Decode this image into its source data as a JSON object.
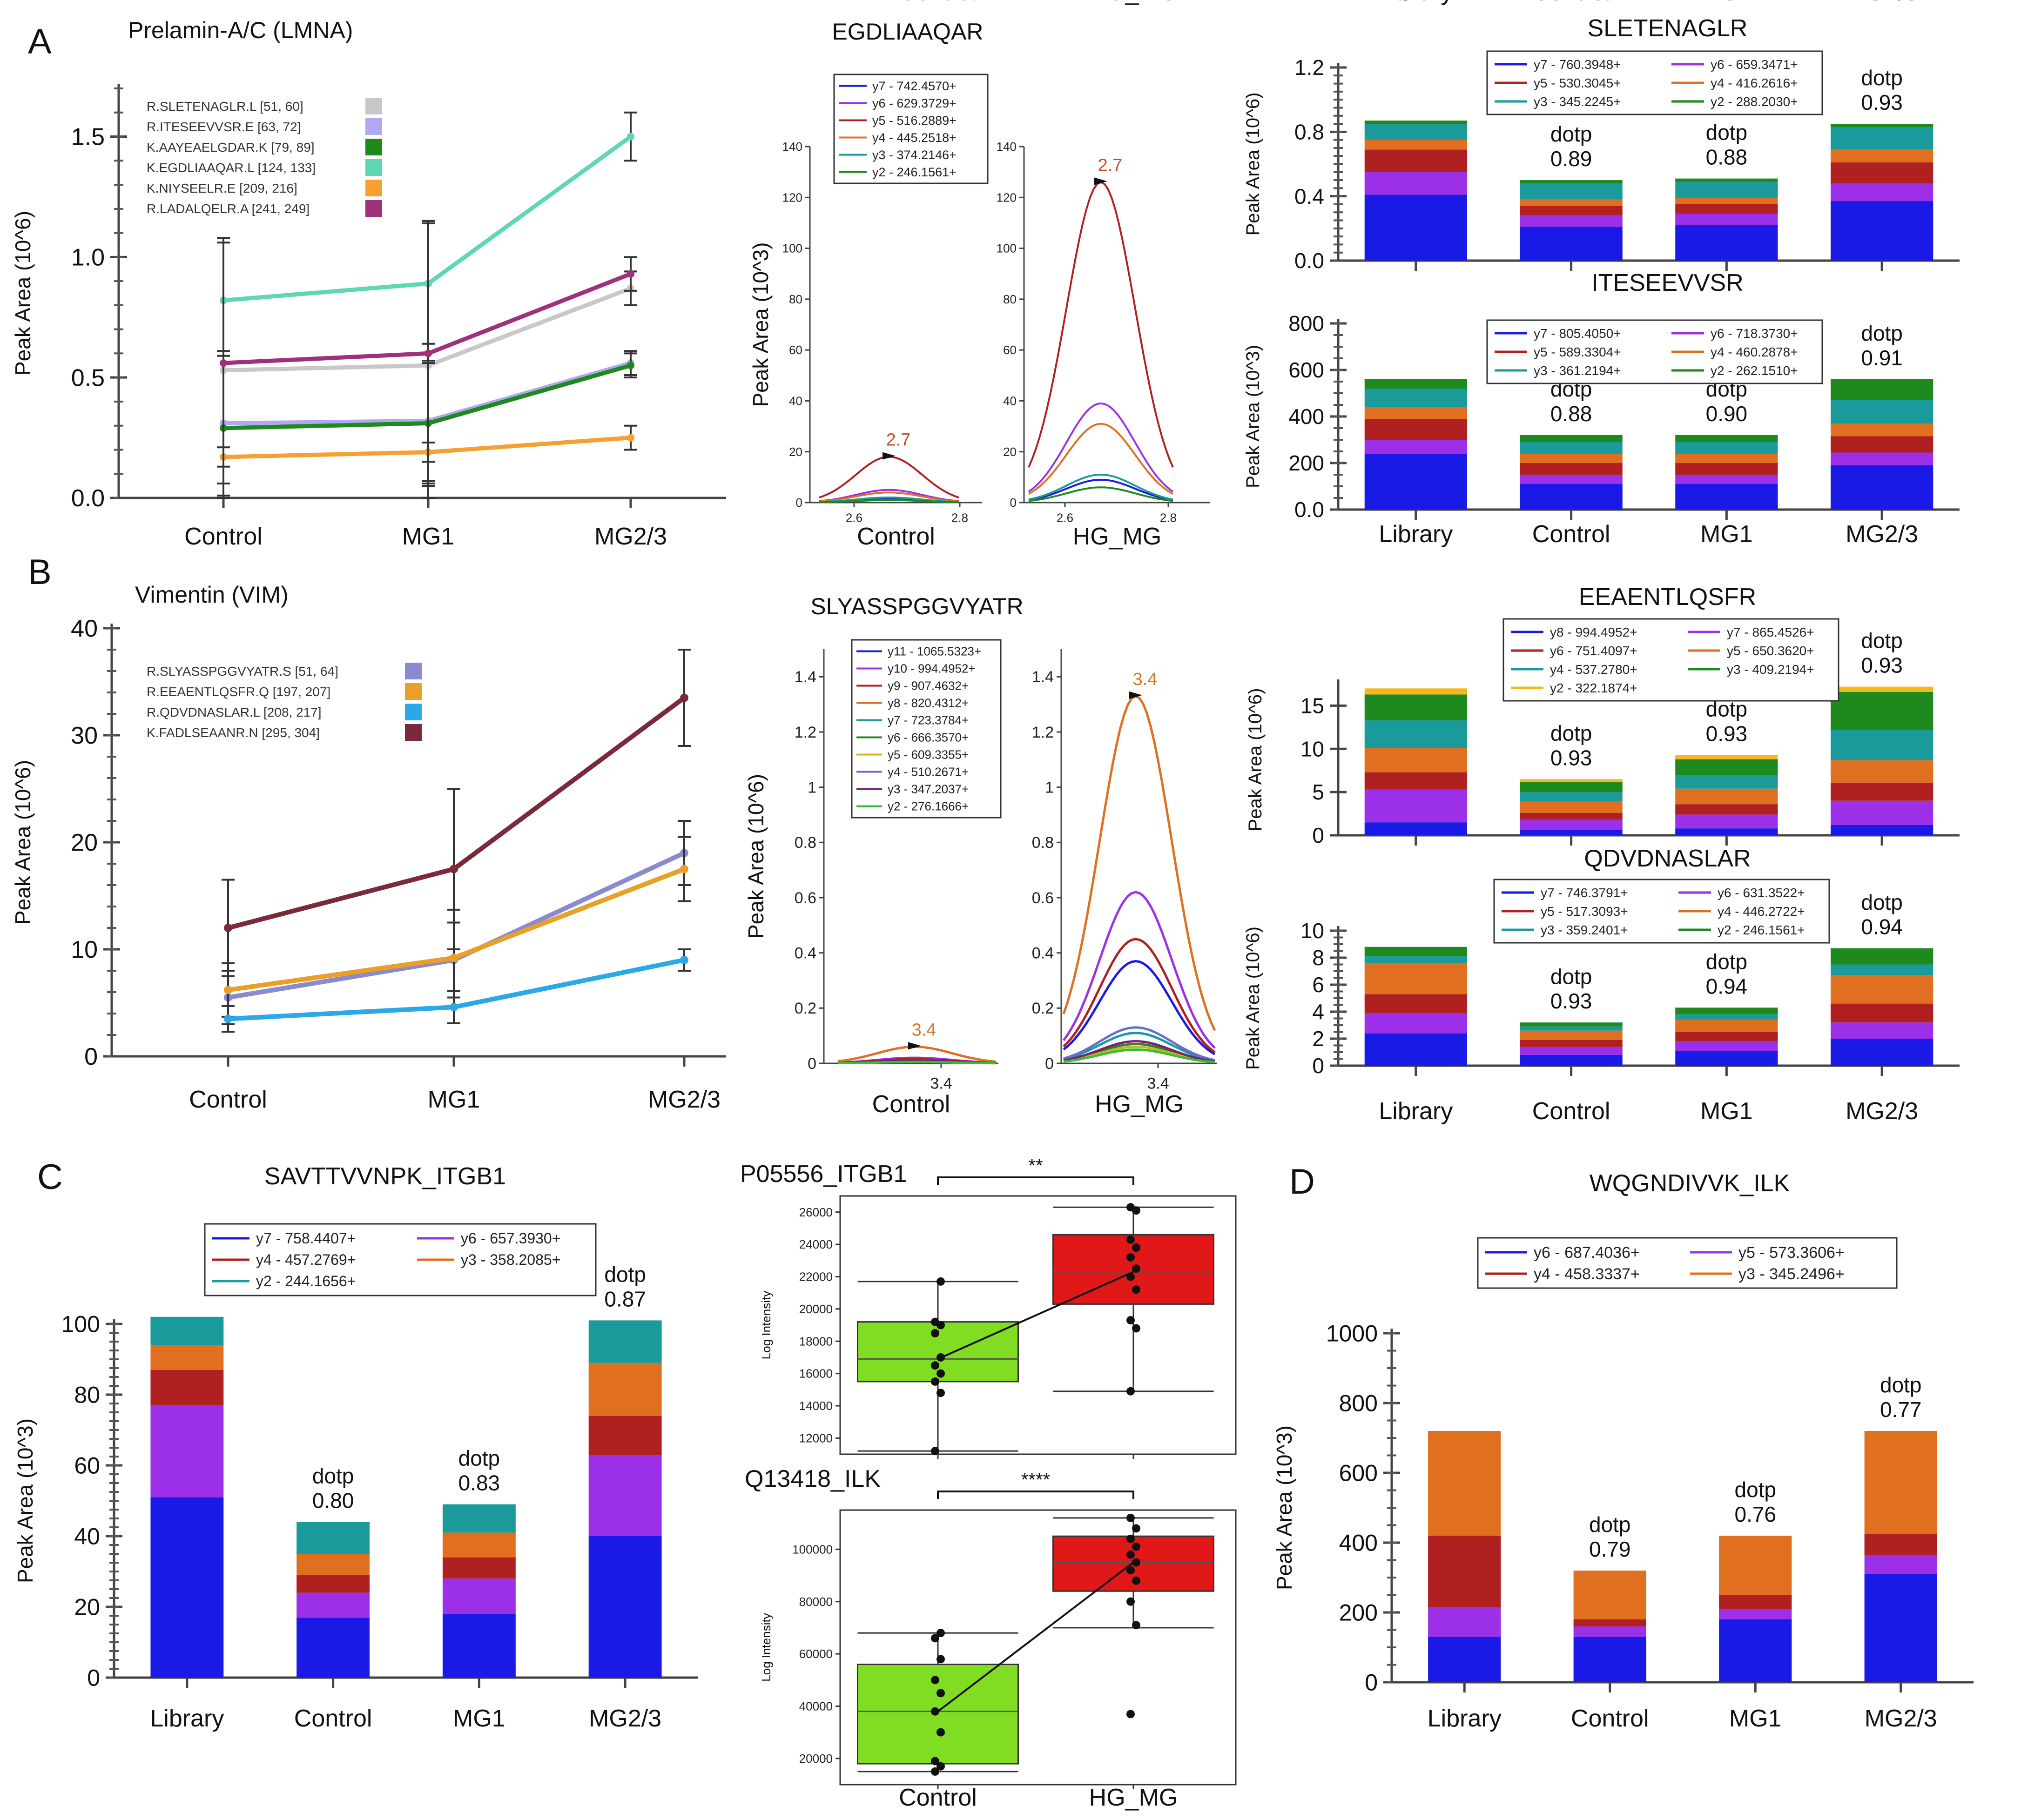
{
  "panel_letters": {
    "A": "A",
    "B": "B",
    "C": "C",
    "D": "D"
  },
  "chart_data": [
    {
      "type": "line",
      "panel": "A",
      "title": "Prelamin-A/C (LMNA)",
      "xlabel": "",
      "ylabel": "Peak Area (10^6)",
      "categories": [
        "Control",
        "MG1",
        "MG2/3"
      ],
      "yticks": [
        "0.0",
        "0.5",
        "1.0",
        "1.5"
      ],
      "ylim": [
        0,
        1.7
      ],
      "series": [
        {
          "name": "R.SLETENAGLR.L [51, 60]",
          "color": "#c8c8c8",
          "values": [
            0.53,
            0.55,
            0.87
          ]
        },
        {
          "name": "R.ITESEEVVSR.E [63, 72]",
          "color": "#b0a8f0",
          "values": [
            0.31,
            0.32,
            0.56
          ]
        },
        {
          "name": "K.AAYEAELGDAR.K [79, 89]",
          "color": "#1e8a1e",
          "values": [
            0.29,
            0.31,
            0.55
          ]
        },
        {
          "name": "K.EGDLIAAQAR.L [124, 133]",
          "color": "#5fd6b4",
          "values": [
            0.82,
            0.89,
            1.5
          ]
        },
        {
          "name": "K.NIYSEELR.E [209, 216]",
          "color": "#f5a030",
          "values": [
            0.17,
            0.19,
            0.25
          ]
        },
        {
          "name": "R.LADALQELR.A [241, 249]",
          "color": "#a0307a",
          "values": [
            0.56,
            0.6,
            0.93
          ]
        }
      ]
    },
    {
      "type": "line",
      "panel": "A",
      "title": "EGDLIAAQAR",
      "ylabel": "Peak Area (10^3)",
      "subplots": [
        "Control",
        "HG_MG"
      ],
      "yticks": [
        "0",
        "20",
        "40",
        "60",
        "80",
        "100",
        "120",
        "140"
      ],
      "xticks": [
        "2.6",
        "2.8"
      ],
      "ylim": [
        0,
        140
      ],
      "peak_label": "2.7",
      "legend": [
        {
          "name": "y7 - 742.4570+",
          "color": "#1a1ae6"
        },
        {
          "name": "y6 - 629.3729+",
          "color": "#9b30e8"
        },
        {
          "name": "y5 - 516.2889+",
          "color": "#b02020"
        },
        {
          "name": "y4 - 445.2518+",
          "color": "#e07020"
        },
        {
          "name": "y3 - 374.2146+",
          "color": "#1a9a9a"
        },
        {
          "name": "y2 - 246.1561+",
          "color": "#1e8a1e"
        }
      ],
      "peak_heights": {
        "Control": [
          1.5,
          5,
          18,
          4,
          2,
          1
        ],
        "HG_MG": [
          9,
          39,
          126,
          31,
          11,
          6
        ]
      }
    },
    {
      "type": "bar",
      "panel": "A",
      "title": "SLETENAGLR",
      "ylabel": "Peak Area (10^6)",
      "categories": [
        "Library",
        "Control",
        "MG1",
        "MG2/3"
      ],
      "yticks": [
        "0.0",
        "0.4",
        "0.8",
        "1.2"
      ],
      "ylim": [
        0,
        1.2
      ],
      "dotp": [
        "",
        "dotp\n0.89",
        "dotp\n0.88",
        "dotp\n0.93"
      ],
      "legend": [
        {
          "name": "y7 - 760.3948+",
          "color": "#1a1ae6"
        },
        {
          "name": "y6 - 659.3471+",
          "color": "#9b30e8"
        },
        {
          "name": "y5 - 530.3045+",
          "color": "#b02020"
        },
        {
          "name": "y4 - 416.2616+",
          "color": "#e07020"
        },
        {
          "name": "y3 - 345.2245+",
          "color": "#1a9a9a"
        },
        {
          "name": "y2 - 288.2030+",
          "color": "#1e8a1e"
        }
      ],
      "series": [
        {
          "name": "y7",
          "values": [
            0.41,
            0.21,
            0.22,
            0.37
          ]
        },
        {
          "name": "y6",
          "values": [
            0.14,
            0.07,
            0.07,
            0.11
          ]
        },
        {
          "name": "y5",
          "values": [
            0.14,
            0.06,
            0.06,
            0.13
          ]
        },
        {
          "name": "y4",
          "values": [
            0.06,
            0.04,
            0.04,
            0.08
          ]
        },
        {
          "name": "y3",
          "values": [
            0.1,
            0.1,
            0.1,
            0.14
          ]
        },
        {
          "name": "y2",
          "values": [
            0.02,
            0.02,
            0.02,
            0.02
          ]
        }
      ]
    },
    {
      "type": "bar",
      "panel": "A",
      "title": "ITESEEVVSR",
      "ylabel": "Peak Area (10^3)",
      "categories": [
        "Library",
        "Control",
        "MG1",
        "MG2/3"
      ],
      "yticks": [
        "0.0",
        "200",
        "400",
        "600",
        "800"
      ],
      "ylim": [
        0,
        800
      ],
      "dotp": [
        "",
        "dotp\n0.88",
        "dotp\n0.90",
        "dotp\n0.91"
      ],
      "legend": [
        {
          "name": "y7 - 805.4050+",
          "color": "#1a1ae6"
        },
        {
          "name": "y6 - 718.3730+",
          "color": "#9b30e8"
        },
        {
          "name": "y5 - 589.3304+",
          "color": "#b02020"
        },
        {
          "name": "y4 - 460.2878+",
          "color": "#e07020"
        },
        {
          "name": "y3 - 361.2194+",
          "color": "#1a9a9a"
        },
        {
          "name": "y2 - 262.1510+",
          "color": "#1e8a1e"
        }
      ],
      "series": [
        {
          "name": "y7",
          "values": [
            240,
            110,
            110,
            190
          ]
        },
        {
          "name": "y6",
          "values": [
            60,
            40,
            40,
            55
          ]
        },
        {
          "name": "y5",
          "values": [
            90,
            50,
            50,
            70
          ]
        },
        {
          "name": "y4",
          "values": [
            50,
            40,
            40,
            55
          ]
        },
        {
          "name": "y3",
          "values": [
            80,
            50,
            50,
            100
          ]
        },
        {
          "name": "y2",
          "values": [
            40,
            30,
            30,
            90
          ]
        }
      ]
    },
    {
      "type": "line",
      "panel": "B",
      "title": "Vimentin (VIM)",
      "ylabel": "Peak Area (10^6)",
      "categories": [
        "Control",
        "MG1",
        "MG2/3"
      ],
      "yticks": [
        "0",
        "10",
        "20",
        "30",
        "40"
      ],
      "ylim": [
        0,
        40
      ],
      "series": [
        {
          "name": "R.SLYASSPGGVYATR.S [51, 64]",
          "color": "#8a8ad0",
          "values": [
            5.5,
            9,
            19
          ]
        },
        {
          "name": "R.EEAENTLQSFR.Q [197, 207]",
          "color": "#e8a028",
          "values": [
            6.2,
            9.2,
            17.5
          ]
        },
        {
          "name": "R.QDVDNASLAR.L [208, 217]",
          "color": "#2aa8e8",
          "values": [
            3.5,
            4.6,
            9
          ]
        },
        {
          "name": "K.FADLSEAANR.N [295, 304]",
          "color": "#7a2a3a",
          "values": [
            12,
            17.5,
            33.5
          ]
        }
      ]
    },
    {
      "type": "line",
      "panel": "B",
      "title": "SLYASSPGGVYATR",
      "ylabel": "Peak Area (10^6)",
      "subplots": [
        "Control",
        "HG_MG"
      ],
      "yticks": [
        "0",
        "0.2",
        "0.4",
        "0.6",
        "0.8",
        "1",
        "1.2",
        "1.4"
      ],
      "xticks": [
        "3.4"
      ],
      "ylim": [
        0,
        1.5
      ],
      "peak_label": "3.4",
      "legend": [
        {
          "name": "y11 - 1065.5323+",
          "color": "#1a1ae6"
        },
        {
          "name": "y10 - 994.4952+",
          "color": "#9b30e8"
        },
        {
          "name": "y9 - 907.4632+",
          "color": "#b02020"
        },
        {
          "name": "y8 - 820.4312+",
          "color": "#e07020"
        },
        {
          "name": "y7 - 723.3784+",
          "color": "#1a9a9a"
        },
        {
          "name": "y6 - 666.3570+",
          "color": "#1e8a1e"
        },
        {
          "name": "y5 - 609.3355+",
          "color": "#d4b020"
        },
        {
          "name": "y4 - 510.2671+",
          "color": "#6a6ad0"
        },
        {
          "name": "y3 - 347.2037+",
          "color": "#7a207a"
        },
        {
          "name": "y2 - 276.1666+",
          "color": "#30c030"
        }
      ],
      "peak_heights": {
        "Control": [
          0.01,
          0.02,
          0.015,
          0.06,
          0.01,
          0.01,
          0.005,
          0.01,
          0.01,
          0.005
        ],
        "HG_MG": [
          0.37,
          0.62,
          0.45,
          1.33,
          0.11,
          0.07,
          0.06,
          0.13,
          0.08,
          0.05
        ]
      }
    },
    {
      "type": "bar",
      "panel": "B",
      "title": "EEAENTLQSFR",
      "ylabel": "Peak Area (10^6)",
      "categories": [
        "Library",
        "Control",
        "MG1",
        "MG2/3"
      ],
      "yticks": [
        "0",
        "5",
        "10",
        "15"
      ],
      "ylim": [
        0,
        17.5
      ],
      "dotp": [
        "",
        "dotp\n0.93",
        "dotp\n0.93",
        "dotp\n0.93"
      ],
      "legend": [
        {
          "name": "y8 - 994.4952+",
          "color": "#1a1ae6"
        },
        {
          "name": "y7 - 865.4526+",
          "color": "#9b30e8"
        },
        {
          "name": "y6 - 751.4097+",
          "color": "#b02020"
        },
        {
          "name": "y5 - 650.3620+",
          "color": "#e07020"
        },
        {
          "name": "y4 - 537.2780+",
          "color": "#1a9a9a"
        },
        {
          "name": "y3 - 409.2194+",
          "color": "#1e8a1e"
        },
        {
          "name": "y2 - 322.1874+",
          "color": "#f5b81a"
        }
      ],
      "series": [
        {
          "name": "y8",
          "values": [
            1.5,
            0.6,
            0.8,
            1.2
          ]
        },
        {
          "name": "y7",
          "values": [
            3.8,
            1.2,
            1.6,
            2.8
          ]
        },
        {
          "name": "y6",
          "values": [
            2,
            0.8,
            1.2,
            2.1
          ]
        },
        {
          "name": "y5",
          "values": [
            2.8,
            1.3,
            1.8,
            2.6
          ]
        },
        {
          "name": "y4",
          "values": [
            3.2,
            1.1,
            1.6,
            3.5
          ]
        },
        {
          "name": "y3",
          "values": [
            3,
            1.2,
            1.8,
            4.4
          ]
        },
        {
          "name": "y2",
          "values": [
            0.7,
            0.3,
            0.5,
            0.6
          ]
        }
      ]
    },
    {
      "type": "bar",
      "panel": "B",
      "title": "QDVDNASLAR",
      "ylabel": "Peak Area (10^6)",
      "categories": [
        "Library",
        "Control",
        "MG1",
        "MG2/3"
      ],
      "yticks": [
        "0",
        "2",
        "4",
        "6",
        "8",
        "10"
      ],
      "ylim": [
        0,
        10
      ],
      "dotp": [
        "",
        "dotp\n0.93",
        "dotp\n0.94",
        "dotp\n0.94"
      ],
      "legend": [
        {
          "name": "y7 - 746.3791+",
          "color": "#1a1ae6"
        },
        {
          "name": "y6 - 631.3522+",
          "color": "#9b30e8"
        },
        {
          "name": "y5 - 517.3093+",
          "color": "#b02020"
        },
        {
          "name": "y4 - 446.2722+",
          "color": "#e07020"
        },
        {
          "name": "y3 - 359.2401+",
          "color": "#1a9a9a"
        },
        {
          "name": "y2 - 246.1561+",
          "color": "#1e8a1e"
        }
      ],
      "series": [
        {
          "name": "y7",
          "values": [
            2.4,
            0.8,
            1.1,
            2
          ]
        },
        {
          "name": "y6",
          "values": [
            1.5,
            0.6,
            0.7,
            1.2
          ]
        },
        {
          "name": "y5",
          "values": [
            1.4,
            0.5,
            0.7,
            1.4
          ]
        },
        {
          "name": "y4",
          "values": [
            2.3,
            0.7,
            0.9,
            2.1
          ]
        },
        {
          "name": "y3",
          "values": [
            0.5,
            0.3,
            0.4,
            0.8
          ]
        },
        {
          "name": "y2",
          "values": [
            0.7,
            0.3,
            0.5,
            1.2
          ]
        }
      ]
    },
    {
      "type": "bar",
      "panel": "C",
      "title": "SAVTTVVNPK_ITGB1",
      "ylabel": "Peak Area (10^3)",
      "categories": [
        "Library",
        "Control",
        "MG1",
        "MG2/3"
      ],
      "yticks": [
        "0",
        "20",
        "40",
        "60",
        "80",
        "100"
      ],
      "ylim": [
        0,
        100
      ],
      "dotp": [
        "",
        "dotp\n0.80",
        "dotp\n0.83",
        "dotp\n0.87"
      ],
      "legend": [
        {
          "name": "y7 - 758.4407+",
          "color": "#1a1ae6"
        },
        {
          "name": "y6 - 657.3930+",
          "color": "#9b30e8"
        },
        {
          "name": "y4 - 457.2769+",
          "color": "#b02020"
        },
        {
          "name": "y3 - 358.2085+",
          "color": "#e07020"
        },
        {
          "name": "y2 - 244.1656+",
          "color": "#1a9a9a"
        }
      ],
      "series": [
        {
          "name": "y7",
          "values": [
            51,
            17,
            18,
            40
          ]
        },
        {
          "name": "y6",
          "values": [
            26,
            7,
            10,
            23
          ]
        },
        {
          "name": "y4",
          "values": [
            10,
            5,
            6,
            11
          ]
        },
        {
          "name": "y3",
          "values": [
            7,
            6,
            7,
            15
          ]
        },
        {
          "name": "y2",
          "values": [
            8,
            9,
            8,
            12
          ]
        }
      ]
    },
    {
      "type": "box",
      "panel": "C",
      "title": "P05556_ITGB1",
      "ylabel": "Log Intensity",
      "categories": [
        "Control",
        "HG_MG"
      ],
      "yticks": [
        "12000",
        "14000",
        "16000",
        "18000",
        "20000",
        "22000",
        "24000",
        "26000"
      ],
      "ylim": [
        11000,
        27000
      ],
      "significance": "**",
      "groups": [
        {
          "name": "Control",
          "color": "#80dd22",
          "min": 11200,
          "q1": 15500,
          "median": 16900,
          "q3": 19200,
          "max": 21700,
          "points": [
            11200,
            14800,
            15500,
            16000,
            16500,
            17000,
            18500,
            19000,
            19200,
            21700
          ]
        },
        {
          "name": "HG_MG",
          "color": "#e01818",
          "min": 14900,
          "q1": 20300,
          "median": 22300,
          "q3": 24600,
          "max": 26300,
          "points": [
            14900,
            18800,
            19300,
            21200,
            22000,
            22500,
            23200,
            23800,
            24300,
            26100,
            26300
          ]
        }
      ]
    },
    {
      "type": "box",
      "panel": "C",
      "title": "Q13418_ILK",
      "ylabel": "Log Intensity",
      "categories": [
        "Control",
        "HG_MG"
      ],
      "yticks": [
        "20000",
        "40000",
        "60000",
        "80000",
        "100000"
      ],
      "ylim": [
        10000,
        115000
      ],
      "significance": "****",
      "groups": [
        {
          "name": "Control",
          "color": "#80dd22",
          "min": 15000,
          "q1": 18000,
          "median": 38000,
          "q3": 56000,
          "max": 68000,
          "points": [
            15000,
            17000,
            19000,
            30000,
            38000,
            45000,
            50000,
            58000,
            66000,
            68000
          ]
        },
        {
          "name": "HG_MG",
          "color": "#e01818",
          "min": 70000,
          "q1": 84000,
          "median": 95000,
          "q3": 105000,
          "max": 112000,
          "points": [
            37000,
            71000,
            80000,
            88000,
            92000,
            95000,
            98000,
            101000,
            104000,
            108000,
            112000
          ]
        }
      ]
    },
    {
      "type": "bar",
      "panel": "D",
      "title": "WQGNDIVVK_ILK",
      "ylabel": "Peak Area (10^3)",
      "categories": [
        "Library",
        "Control",
        "MG1",
        "MG2/3"
      ],
      "yticks": [
        "0",
        "200",
        "400",
        "600",
        "800",
        "1000"
      ],
      "ylim": [
        0,
        1000
      ],
      "dotp": [
        "",
        "dotp\n0.79",
        "dotp\n0.76",
        "dotp\n0.77"
      ],
      "legend": [
        {
          "name": "y6 - 687.4036+",
          "color": "#1a1ae6"
        },
        {
          "name": "y5 - 573.3606+",
          "color": "#9b30e8"
        },
        {
          "name": "y4 - 458.3337+",
          "color": "#b02020"
        },
        {
          "name": "y3 - 345.2496+",
          "color": "#e07020"
        }
      ],
      "series": [
        {
          "name": "y6",
          "values": [
            130,
            130,
            180,
            310
          ]
        },
        {
          "name": "y5",
          "values": [
            85,
            30,
            30,
            55
          ]
        },
        {
          "name": "y4",
          "values": [
            205,
            20,
            40,
            60
          ]
        },
        {
          "name": "y3",
          "values": [
            300,
            140,
            170,
            295
          ]
        }
      ]
    }
  ]
}
